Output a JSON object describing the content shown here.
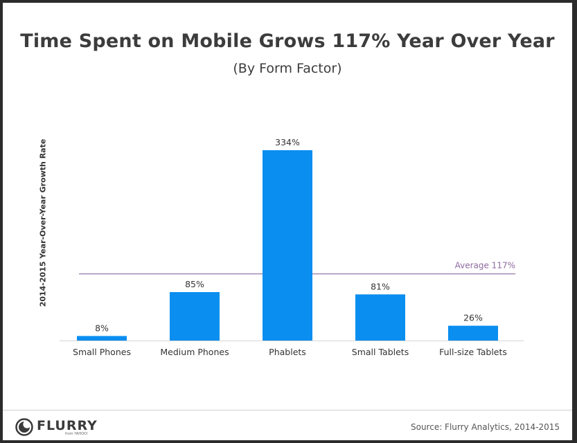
{
  "chart_data": {
    "type": "bar",
    "title": "Time Spent on Mobile Grows 117% Year Over Year",
    "subtitle": "(By Form Factor)",
    "ylabel": "2014-2015 Year-Over-Year Growth Rate",
    "categories": [
      "Small Phones",
      "Medium Phones",
      "Phablets",
      "Small Tablets",
      "Full-size Tablets"
    ],
    "values": [
      8,
      85,
      334,
      81,
      26
    ],
    "value_labels": [
      "8%",
      "85%",
      "334%",
      "81%",
      "26%"
    ],
    "ylim": [
      0,
      350
    ],
    "reference_line": {
      "value": 117,
      "label": "Average 117%"
    },
    "grid": false,
    "bar_color": "#0a8ef0",
    "reference_color": "#8e6aa0"
  },
  "footer": {
    "logo_text": "FLURRY",
    "logo_sub": "from YAHOO!",
    "source": "Source: Flurry Analytics, 2014-2015"
  }
}
